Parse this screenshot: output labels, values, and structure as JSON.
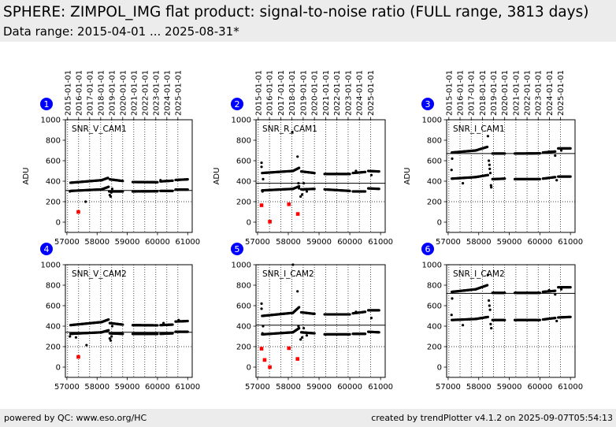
{
  "header": {
    "title": "SPHERE: ZIMPOL_IMG flat product: signal-to-noise ratio (FULL range, 3813 days)",
    "subtitle": "Data range: 2015-04-01 ... 2025-08-31*"
  },
  "footer": {
    "left": "powered by QC: www.eso.org/HC",
    "right": "created by trendPlotter v4.1.2 on 2025-09-07T05:54:13"
  },
  "colors": {
    "normal": "#000000",
    "outlier": "#ff0000",
    "badge": "#0000ff",
    "header_bg": "#ececec"
  },
  "chart_data": [
    {
      "type": "scatter",
      "number": "1",
      "label": "SNR_V_CAM1",
      "ylabel": "ADU",
      "xlim": [
        56950,
        61150
      ],
      "ylim": [
        -100,
        1000
      ],
      "xticks": [
        57000,
        58000,
        59000,
        60000,
        61000
      ],
      "yticks": [
        0,
        200,
        400,
        600,
        800,
        1000
      ],
      "date_ticks": [
        "2015-01-01",
        "2016-01-01",
        "2017-01-01",
        "2018-01-01",
        "2019-01-01",
        "2020-01-01",
        "2021-01-01",
        "2022-01-01",
        "2023-01-01",
        "2024-01-01",
        "2025-01-01"
      ],
      "ref_lines": [
        310
      ],
      "threshold": 200,
      "series": [
        {
          "segments": [
            [
              57120,
              385,
              58150,
              410
            ],
            [
              58150,
              410,
              58360,
              432
            ],
            [
              58420,
              418,
              58850,
              402
            ],
            [
              59180,
              392,
              60000,
              390
            ],
            [
              60100,
              398,
              60500,
              405
            ],
            [
              60600,
              412,
              61000,
              418
            ]
          ]
        },
        {
          "segments": [
            [
              57120,
              305,
              58150,
              320
            ],
            [
              58150,
              320,
              58380,
              345
            ],
            [
              58400,
              300,
              58850,
              300
            ],
            [
              59180,
              300,
              60000,
              302
            ],
            [
              60100,
              305,
              60500,
              305
            ],
            [
              60600,
              318,
              61000,
              318
            ]
          ]
        }
      ],
      "scatter": [
        [
          57100,
          300
        ],
        [
          57620,
          200
        ],
        [
          58420,
          265
        ],
        [
          58450,
          250
        ],
        [
          58500,
          325
        ],
        [
          60100,
          410
        ],
        [
          60250,
          400
        ],
        [
          58470,
          290
        ]
      ],
      "outliers": [
        [
          57380,
          100
        ]
      ]
    },
    {
      "type": "scatter",
      "number": "2",
      "label": "SNR_R_CAM1",
      "ylabel": "ADU",
      "xlim": [
        56950,
        61150
      ],
      "ylim": [
        -100,
        1000
      ],
      "xticks": [
        57000,
        58000,
        59000,
        60000,
        61000
      ],
      "yticks": [
        0,
        200,
        400,
        600,
        800,
        1000
      ],
      "date_ticks": [
        "2015-01-01",
        "2016-01-01",
        "2017-01-01",
        "2018-01-01",
        "2019-01-01",
        "2020-01-01",
        "2021-01-01",
        "2022-01-01",
        "2023-01-01",
        "2024-01-01",
        "2025-01-01"
      ],
      "ref_lines": [
        380
      ],
      "threshold": 200,
      "series": [
        {
          "segments": [
            [
              57150,
              480,
              58150,
              500
            ],
            [
              58150,
              500,
              58350,
              530
            ],
            [
              58420,
              495,
              58850,
              480
            ],
            [
              59180,
              470,
              60000,
              470
            ],
            [
              60100,
              480,
              60500,
              490
            ],
            [
              60600,
              500,
              60950,
              495
            ]
          ]
        },
        {
          "segments": [
            [
              57150,
              310,
              58150,
              325
            ],
            [
              58150,
              325,
              58350,
              350
            ],
            [
              58420,
              320,
              58850,
              325
            ],
            [
              59180,
              320,
              60000,
              305
            ],
            [
              60100,
              300,
              60500,
              300
            ],
            [
              60600,
              330,
              60950,
              325
            ]
          ]
        }
      ],
      "scatter": [
        [
          57130,
          580
        ],
        [
          57130,
          540
        ],
        [
          57160,
          300
        ],
        [
          57180,
          420
        ],
        [
          58130,
          880
        ],
        [
          58300,
          640
        ],
        [
          58330,
          380
        ],
        [
          58400,
          250
        ],
        [
          58450,
          270
        ],
        [
          58350,
          330
        ],
        [
          58500,
          380
        ],
        [
          58600,
          300
        ],
        [
          60200,
          500
        ],
        [
          60700,
          460
        ]
      ],
      "outliers": [
        [
          57130,
          165
        ],
        [
          57400,
          5
        ],
        [
          58020,
          175
        ],
        [
          58310,
          80
        ]
      ]
    },
    {
      "type": "scatter",
      "number": "3",
      "label": "SNR_I_CAM1",
      "ylabel": "ADU",
      "xlim": [
        56950,
        61150
      ],
      "ylim": [
        -100,
        1000
      ],
      "xticks": [
        57000,
        58000,
        59000,
        60000,
        61000
      ],
      "yticks": [
        0,
        200,
        400,
        600,
        800,
        1000
      ],
      "date_ticks": [
        "2015-01-01",
        "2016-01-01",
        "2017-01-01",
        "2018-01-01",
        "2019-01-01",
        "2020-01-01",
        "2021-01-01",
        "2022-01-01",
        "2023-01-01",
        "2024-01-01",
        "2025-01-01"
      ],
      "ref_lines": [
        670
      ],
      "threshold": 200,
      "series": [
        {
          "segments": [
            [
              57120,
              680,
              57900,
              700
            ],
            [
              57900,
              700,
              58280,
              735
            ],
            [
              58450,
              670,
              58850,
              670
            ],
            [
              59180,
              670,
              60000,
              672
            ],
            [
              60100,
              680,
              60500,
              690
            ],
            [
              60600,
              720,
              61000,
              720
            ]
          ]
        },
        {
          "segments": [
            [
              57120,
              425,
              57900,
              440
            ],
            [
              57900,
              440,
              58300,
              460
            ],
            [
              58450,
              420,
              58850,
              425
            ],
            [
              59180,
              420,
              60000,
              420
            ],
            [
              60100,
              425,
              60500,
              440
            ],
            [
              60600,
              445,
              61000,
              445
            ]
          ]
        }
      ],
      "scatter": [
        [
          57110,
          510
        ],
        [
          57130,
          620
        ],
        [
          57480,
          380
        ],
        [
          58300,
          840
        ],
        [
          58330,
          600
        ],
        [
          58350,
          560
        ],
        [
          58360,
          520
        ],
        [
          58380,
          480
        ],
        [
          58400,
          360
        ],
        [
          58410,
          340
        ],
        [
          60300,
          690
        ],
        [
          60500,
          650
        ],
        [
          60700,
          700
        ],
        [
          60550,
          410
        ]
      ],
      "outliers": []
    },
    {
      "type": "scatter",
      "number": "4",
      "label": "SNR_V_CAM2",
      "ylabel": "",
      "xlim": [
        56950,
        61150
      ],
      "ylim": [
        -100,
        1000
      ],
      "xticks": [
        57000,
        58000,
        59000,
        60000,
        61000
      ],
      "yticks": [
        0,
        200,
        400,
        600,
        800,
        1000
      ],
      "date_ticks": [],
      "ref_lines": [
        340
      ],
      "threshold": 200,
      "series": [
        {
          "segments": [
            [
              57120,
              410,
              58150,
              440
            ],
            [
              58150,
              440,
              58380,
              465
            ],
            [
              58420,
              430,
              58850,
              415
            ],
            [
              59180,
              410,
              60000,
              408
            ],
            [
              60100,
              410,
              60500,
              415
            ],
            [
              60600,
              445,
              61000,
              450
            ]
          ]
        },
        {
          "segments": [
            [
              57120,
              325,
              58150,
              340
            ],
            [
              58150,
              340,
              58380,
              360
            ],
            [
              58420,
              330,
              58850,
              325
            ],
            [
              59180,
              325,
              60000,
              325
            ],
            [
              60100,
              325,
              60500,
              330
            ],
            [
              60600,
              345,
              61000,
              345
            ]
          ]
        }
      ],
      "scatter": [
        [
          57100,
          300
        ],
        [
          57300,
          290
        ],
        [
          57650,
          215
        ],
        [
          58420,
          280
        ],
        [
          58450,
          260
        ],
        [
          58480,
          300
        ],
        [
          58500,
          400
        ],
        [
          60200,
          430
        ],
        [
          60700,
          460
        ]
      ],
      "outliers": [
        [
          57380,
          100
        ]
      ]
    },
    {
      "type": "scatter",
      "number": "5",
      "label": "SNR_I_CAM2",
      "ylabel": "",
      "xlim": [
        56950,
        61150
      ],
      "ylim": [
        -100,
        1000
      ],
      "xticks": [
        57000,
        58000,
        59000,
        60000,
        61000
      ],
      "yticks": [
        0,
        200,
        400,
        600,
        800,
        1000
      ],
      "date_ticks": [],
      "ref_lines": [
        410
      ],
      "threshold": 200,
      "series": [
        {
          "segments": [
            [
              57150,
              500,
              58150,
              530
            ],
            [
              58150,
              530,
              58350,
              585
            ],
            [
              58420,
              535,
              58850,
              520
            ],
            [
              59180,
              515,
              60000,
              515
            ],
            [
              60100,
              525,
              60500,
              540
            ],
            [
              60600,
              555,
              60950,
              555
            ]
          ]
        },
        {
          "segments": [
            [
              57150,
              320,
              58150,
              340
            ],
            [
              58150,
              340,
              58350,
              380
            ],
            [
              58420,
              340,
              58850,
              330
            ],
            [
              59180,
              320,
              60000,
              320
            ],
            [
              60100,
              325,
              60500,
              325
            ],
            [
              60600,
              345,
              60950,
              340
            ]
          ]
        }
      ],
      "scatter": [
        [
          57130,
          620
        ],
        [
          57130,
          570
        ],
        [
          57160,
          330
        ],
        [
          57180,
          400
        ],
        [
          58150,
          1000
        ],
        [
          58300,
          740
        ],
        [
          58330,
          400
        ],
        [
          58400,
          270
        ],
        [
          58450,
          290
        ],
        [
          58500,
          380
        ],
        [
          58600,
          310
        ],
        [
          60200,
          540
        ],
        [
          60700,
          480
        ]
      ],
      "outliers": [
        [
          57130,
          180
        ],
        [
          57230,
          70
        ],
        [
          57400,
          0
        ],
        [
          58020,
          185
        ],
        [
          58300,
          80
        ]
      ]
    },
    {
      "type": "scatter",
      "number": "6",
      "label": "SNR_I_CAM2",
      "ylabel": "",
      "xlim": [
        56950,
        61150
      ],
      "ylim": [
        -100,
        1000
      ],
      "xticks": [
        57000,
        58000,
        59000,
        60000,
        61000
      ],
      "yticks": [
        0,
        200,
        400,
        600,
        800,
        1000
      ],
      "date_ticks": [],
      "ref_lines": [
        720
      ],
      "threshold": 200,
      "series": [
        {
          "segments": [
            [
              57120,
              735,
              57900,
              760
            ],
            [
              57900,
              760,
              58280,
              800
            ],
            [
              58450,
              725,
              58850,
              725
            ],
            [
              59180,
              725,
              60000,
              725
            ],
            [
              60100,
              735,
              60500,
              745
            ],
            [
              60600,
              780,
              61000,
              780
            ]
          ]
        },
        {
          "segments": [
            [
              57120,
              460,
              57900,
              470
            ],
            [
              57900,
              470,
              58300,
              490
            ],
            [
              58450,
              460,
              58850,
              460
            ],
            [
              59180,
              460,
              60000,
              460
            ],
            [
              60100,
              465,
              60500,
              480
            ],
            [
              60600,
              485,
              61000,
              490
            ]
          ]
        }
      ],
      "scatter": [
        [
          57110,
          510
        ],
        [
          57130,
          670
        ],
        [
          57480,
          410
        ],
        [
          58300,
          900
        ],
        [
          58330,
          650
        ],
        [
          58350,
          600
        ],
        [
          58370,
          560
        ],
        [
          58390,
          420
        ],
        [
          58410,
          380
        ],
        [
          60300,
          750
        ],
        [
          60500,
          710
        ],
        [
          60700,
          760
        ],
        [
          60550,
          450
        ]
      ],
      "outliers": []
    }
  ]
}
